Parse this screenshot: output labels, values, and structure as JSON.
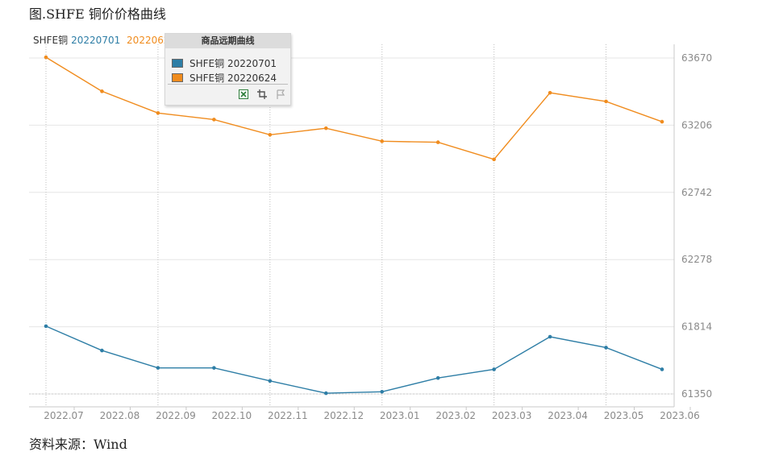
{
  "figure_title": "图.SHFE 铜价价格曲线",
  "source_note": "资料来源：Wind",
  "legend_top": {
    "prefix": "SHFE铜",
    "series1": "20220701",
    "series2": "20220624"
  },
  "popup": {
    "title": "商品远期曲线",
    "items": [
      "SHFE铜 20220701",
      "SHFE铜 20220624"
    ],
    "icons": [
      "excel-export-icon",
      "crop-icon",
      "flag-icon"
    ]
  },
  "colors": {
    "series_20220701": "#2e7ea6",
    "series_20220624": "#f08c1e",
    "grid": "#c8c8c8",
    "axis_text": "#8a8a8a"
  },
  "chart_data": {
    "type": "line",
    "categories": [
      "2022.07",
      "2022.08",
      "2022.09",
      "2022.10",
      "2022.11",
      "2022.12",
      "2023.01",
      "2023.02",
      "2023.03",
      "2023.04",
      "2023.05",
      "2023.06"
    ],
    "x": [
      "2022.07",
      "2022.08",
      "2022.09",
      "2022.10",
      "2022.11",
      "2022.12",
      "2023.01",
      "2023.02",
      "2023.03",
      "2023.04",
      "2023.05",
      "2023.06"
    ],
    "yticks": [
      61350,
      61814,
      62278,
      62742,
      63206,
      63670
    ],
    "ylim": [
      61350,
      63670
    ],
    "grid": true,
    "series": [
      {
        "name": "SHFE铜 20220701",
        "color": "#2e7ea6",
        "values": [
          61818,
          61650,
          61530,
          61530,
          61440,
          61355,
          61365,
          61460,
          61520,
          61745,
          61670,
          61520
        ]
      },
      {
        "name": "SHFE铜 20220624",
        "color": "#f08c1e",
        "values": [
          63675,
          63440,
          63290,
          63245,
          63140,
          63185,
          63095,
          63088,
          62970,
          63430,
          63370,
          63230
        ]
      }
    ]
  }
}
